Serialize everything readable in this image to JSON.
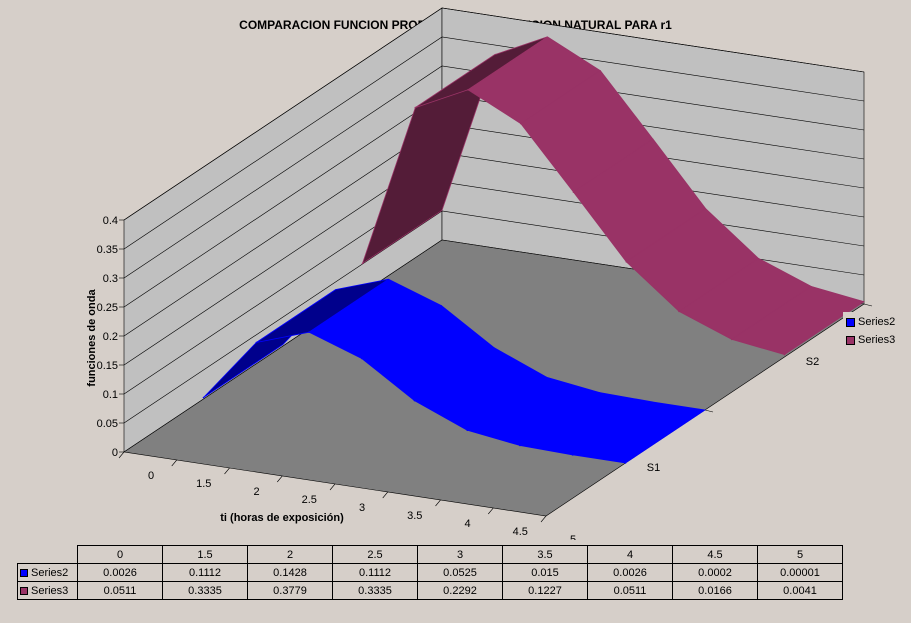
{
  "chart_data": {
    "type": "area",
    "title": "COMPARACION FUNCION PROBABILIDAD VS FUNCION NATURAL PARA r1",
    "xlabel": "ti (horas de exposición)",
    "ylabel": "funciones de onda",
    "zlabels": [
      "S1",
      "S2"
    ],
    "categories": [
      "0",
      "1.5",
      "2",
      "2.5",
      "3",
      "3.5",
      "4",
      "4.5",
      "5"
    ],
    "yticks": [
      "0",
      "0.05",
      "0.1",
      "0.15",
      "0.2",
      "0.25",
      "0.3",
      "0.35",
      "0.4"
    ],
    "ylim": [
      0,
      0.4
    ],
    "grid": true,
    "legend_position": "right",
    "series": [
      {
        "name": "Series2",
        "color": "#0000ff",
        "values": [
          0.0026,
          0.1112,
          0.1428,
          0.1112,
          0.0525,
          0.015,
          0.0026,
          0.0002,
          1e-05
        ]
      },
      {
        "name": "Series3",
        "color": "#993366",
        "values": [
          0.0511,
          0.3335,
          0.3779,
          0.3335,
          0.2292,
          0.1227,
          0.0511,
          0.0166,
          0.0041
        ]
      }
    ]
  },
  "table": {
    "headers": [
      "0",
      "1.5",
      "2",
      "2.5",
      "3",
      "3.5",
      "4",
      "4.5",
      "5"
    ],
    "rows": [
      {
        "name": "Series2",
        "cells": [
          "0.0026",
          "0.1112",
          "0.1428",
          "0.1112",
          "0.0525",
          "0.015",
          "0.0026",
          "0.0002",
          "0.00001"
        ]
      },
      {
        "name": "Series3",
        "cells": [
          "0.0511",
          "0.3335",
          "0.3779",
          "0.3335",
          "0.2292",
          "0.1227",
          "0.0511",
          "0.0166",
          "0.0041"
        ]
      }
    ]
  }
}
